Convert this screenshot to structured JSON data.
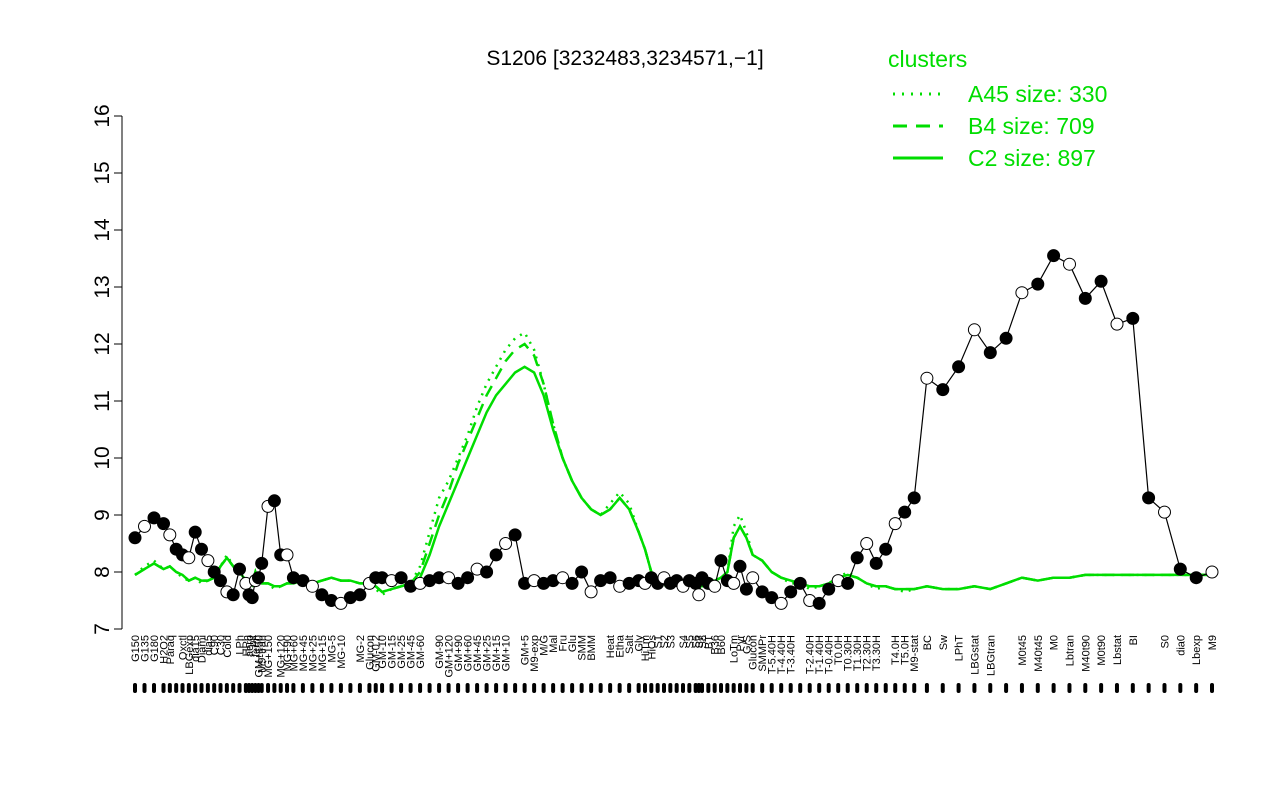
{
  "chart_data": {
    "type": "line",
    "title": "S1206 [3232483,3234571,−1]",
    "ylim": [
      7,
      16
    ],
    "yticks": [
      7,
      8,
      9,
      10,
      11,
      12,
      13,
      14,
      15,
      16
    ],
    "legend": {
      "title": "clusters",
      "placement": "top-right",
      "entries": [
        "A45 size: 330",
        "B4 size: 709",
        "C2 size: 897"
      ]
    },
    "x_labels": [
      "G150",
      "G135",
      "G180",
      "H2O2",
      "Paraq",
      "Oxctl",
      "LBGexp",
      "dia15",
      "Diami",
      "dia5",
      "C90",
      "C30",
      "Cold",
      "LPh",
      "HPh",
      "aero",
      "nit",
      "ferm",
      "GM+150",
      "M9-tran",
      "MG+150",
      "MG+120",
      "MG+90",
      "MG+60",
      "MG+45",
      "MG+25",
      "MG+15",
      "MG-5",
      "MG-10",
      "MG-2",
      "Glucon",
      "GM-0.2",
      "GM-10",
      "GM-15",
      "GM-25",
      "GM-45",
      "GM-60",
      "GM-90",
      "GM+120",
      "GM+90",
      "GM+60",
      "GM+45",
      "GM+25",
      "GM+15",
      "GM+10",
      "GM+5",
      "M9-exp",
      "M/G",
      "Mal",
      "Fru",
      "Glu",
      "SMM",
      "BMM",
      "Heat",
      "Etha",
      "Salt",
      "Gly",
      "HiTm",
      "HiOs",
      "S1",
      "S2",
      "S3",
      "S4",
      "S5",
      "S6",
      "S7",
      "S8",
      "BT",
      "B36",
      "B60",
      "LoTm",
      "Pyr",
      "G/S",
      "Glucon",
      "SMMPr",
      "T-5.40H",
      "T-4.40H",
      "T-3.40H",
      "T-2.40H",
      "T-1.40H",
      "T-0.40H",
      "T0.0H",
      "T0.30H",
      "T1.30H",
      "T2.30H",
      "T3.30H",
      "T4.0H",
      "T5.0H",
      "M9-stat",
      "BC",
      "Sw",
      "LPhT",
      "LBGstat",
      "LBGtran",
      "M0t45",
      "M40t45",
      "M0",
      "Lbtran",
      "M40t90",
      "M0t90",
      "Lbstat",
      "BI",
      "S0",
      "dia0",
      "Lbexp",
      "M9"
    ],
    "series": [
      {
        "name": "A45 size: 330",
        "style": "dotted",
        "x": [
          0,
          6,
          12,
          18,
          22,
          26,
          30,
          34,
          38,
          42,
          46,
          50,
          54,
          58,
          62,
          66,
          70,
          72,
          74,
          76,
          78,
          80,
          84,
          88,
          92,
          96,
          100,
          106,
          112,
          118,
          124,
          130,
          136,
          142,
          148,
          152,
          156,
          162,
          168,
          174,
          180,
          186,
          192,
          198,
          204,
          210,
          216,
          222,
          228,
          234,
          240,
          246,
          252,
          258,
          264,
          270,
          276,
          282,
          288,
          294,
          300,
          306,
          312,
          318,
          322,
          326,
          330,
          334,
          338,
          342,
          346,
          350,
          354,
          356,
          358,
          362,
          366,
          370,
          374,
          378,
          382,
          386,
          390,
          396,
          402,
          408,
          414,
          420,
          426,
          432,
          438,
          444,
          450,
          456,
          462,
          468,
          474,
          480,
          486,
          492,
          500,
          510,
          520,
          530,
          540,
          550,
          560,
          570,
          580,
          590,
          600,
          610,
          620,
          630,
          640,
          650,
          660,
          670,
          680
        ],
        "y": [
          7.95,
          8.1,
          8.2,
          8.05,
          8.1,
          8.0,
          7.9,
          7.85,
          7.9,
          7.8,
          7.85,
          7.9,
          8.1,
          8.3,
          8.1,
          8.0,
          7.8,
          7.7,
          7.75,
          8.0,
          7.85,
          7.8,
          7.8,
          7.7,
          7.75,
          7.8,
          7.8,
          7.85,
          7.8,
          7.85,
          7.9,
          7.85,
          7.85,
          7.8,
          7.8,
          7.7,
          7.6,
          7.7,
          7.75,
          7.8,
          8.1,
          8.7,
          9.3,
          9.6,
          10.0,
          10.4,
          10.9,
          11.3,
          11.6,
          11.9,
          12.1,
          12.2,
          11.9,
          11.3,
          10.6,
          10.0,
          9.6,
          9.3,
          9.1,
          9.0,
          9.2,
          9.4,
          9.2,
          8.7,
          8.4,
          8.0,
          7.8,
          7.75,
          7.8,
          7.8,
          7.75,
          7.8,
          7.8,
          7.7,
          7.75,
          7.8,
          7.85,
          7.9,
          8.0,
          8.8,
          9.0,
          8.7,
          8.3,
          8.2,
          8.0,
          7.9,
          7.8,
          7.8,
          7.7,
          7.75,
          7.8,
          7.9,
          8.0,
          7.9,
          7.8,
          7.7,
          7.75,
          7.7,
          7.65,
          7.7,
          7.75,
          7.7,
          7.7,
          7.75,
          7.7,
          7.8,
          7.9,
          7.85,
          7.9,
          7.9,
          7.95,
          7.95,
          7.95,
          7.95,
          7.95,
          7.95,
          7.95,
          7.95,
          7.95
        ]
      },
      {
        "name": "B4 size: 709",
        "style": "dashed",
        "x": [
          0,
          6,
          12,
          18,
          22,
          26,
          30,
          34,
          38,
          42,
          46,
          50,
          54,
          58,
          62,
          66,
          70,
          72,
          74,
          76,
          78,
          80,
          84,
          88,
          92,
          96,
          100,
          106,
          112,
          118,
          124,
          130,
          136,
          142,
          148,
          152,
          156,
          162,
          168,
          174,
          180,
          186,
          192,
          198,
          204,
          210,
          216,
          222,
          228,
          234,
          240,
          246,
          252,
          258,
          264,
          270,
          276,
          282,
          288,
          294,
          300,
          306,
          312,
          318,
          322,
          326,
          330,
          334,
          338,
          342,
          346,
          350,
          354,
          356,
          358,
          362,
          366,
          370,
          374,
          378,
          382,
          386,
          390,
          396,
          402,
          408,
          414,
          420,
          426,
          432,
          438,
          444,
          450,
          456,
          462,
          468,
          474,
          480,
          486,
          492,
          500,
          510,
          520,
          530,
          540,
          550,
          560,
          570,
          580,
          590,
          600,
          610,
          620,
          630,
          640,
          650,
          660,
          670,
          680
        ],
        "y": [
          7.95,
          8.05,
          8.15,
          8.05,
          8.1,
          8.0,
          7.95,
          7.85,
          7.9,
          7.85,
          7.85,
          7.9,
          8.1,
          8.25,
          8.1,
          8.0,
          7.85,
          7.75,
          7.8,
          8.0,
          7.85,
          7.8,
          7.8,
          7.75,
          7.75,
          7.8,
          7.8,
          7.85,
          7.8,
          7.85,
          7.9,
          7.85,
          7.85,
          7.8,
          7.8,
          7.75,
          7.65,
          7.7,
          7.75,
          7.8,
          8.0,
          8.5,
          9.0,
          9.4,
          9.9,
          10.3,
          10.7,
          11.1,
          11.4,
          11.7,
          11.9,
          12.0,
          11.8,
          11.3,
          10.6,
          10.0,
          9.6,
          9.3,
          9.1,
          9.0,
          9.1,
          9.3,
          9.1,
          8.7,
          8.4,
          8.0,
          7.85,
          7.8,
          7.8,
          7.8,
          7.75,
          7.8,
          7.8,
          7.75,
          7.75,
          7.8,
          7.85,
          7.9,
          8.0,
          8.6,
          8.8,
          8.6,
          8.3,
          8.2,
          8.0,
          7.9,
          7.85,
          7.8,
          7.75,
          7.75,
          7.8,
          7.9,
          7.95,
          7.9,
          7.8,
          7.75,
          7.75,
          7.7,
          7.7,
          7.7,
          7.75,
          7.7,
          7.7,
          7.75,
          7.7,
          7.8,
          7.9,
          7.85,
          7.9,
          7.9,
          7.95,
          7.95,
          7.95,
          7.95,
          7.95,
          7.95,
          7.95,
          7.95,
          7.95
        ]
      },
      {
        "name": "C2 size: 897",
        "style": "solid",
        "x": [
          0,
          6,
          12,
          18,
          22,
          26,
          30,
          34,
          38,
          42,
          46,
          50,
          54,
          58,
          62,
          66,
          70,
          72,
          74,
          76,
          78,
          80,
          84,
          88,
          92,
          96,
          100,
          106,
          112,
          118,
          124,
          130,
          136,
          142,
          148,
          152,
          156,
          162,
          168,
          174,
          180,
          186,
          192,
          198,
          204,
          210,
          216,
          222,
          228,
          234,
          240,
          246,
          252,
          258,
          264,
          270,
          276,
          282,
          288,
          294,
          300,
          306,
          312,
          318,
          322,
          326,
          330,
          334,
          338,
          342,
          346,
          350,
          354,
          356,
          358,
          362,
          366,
          370,
          374,
          378,
          382,
          386,
          390,
          396,
          402,
          408,
          414,
          420,
          426,
          432,
          438,
          444,
          450,
          456,
          462,
          468,
          474,
          480,
          486,
          492,
          500,
          510,
          520,
          530,
          540,
          550,
          560,
          570,
          580,
          590,
          600,
          610,
          620,
          630,
          640,
          650,
          660,
          670,
          680
        ],
        "y": [
          7.95,
          8.05,
          8.15,
          8.05,
          8.1,
          8.0,
          7.95,
          7.85,
          7.9,
          7.85,
          7.85,
          7.9,
          8.1,
          8.25,
          8.1,
          8.0,
          7.85,
          7.75,
          7.8,
          8.0,
          7.85,
          7.8,
          7.8,
          7.75,
          7.75,
          7.8,
          7.8,
          7.85,
          7.8,
          7.85,
          7.9,
          7.85,
          7.85,
          7.8,
          7.8,
          7.75,
          7.65,
          7.7,
          7.75,
          7.8,
          7.9,
          8.3,
          8.8,
          9.2,
          9.6,
          10.0,
          10.4,
          10.8,
          11.1,
          11.3,
          11.5,
          11.6,
          11.5,
          11.1,
          10.5,
          10.0,
          9.6,
          9.3,
          9.1,
          9.0,
          9.1,
          9.3,
          9.1,
          8.7,
          8.4,
          8.0,
          7.85,
          7.8,
          7.8,
          7.8,
          7.75,
          7.8,
          7.8,
          7.75,
          7.75,
          7.8,
          7.85,
          7.9,
          8.0,
          8.6,
          8.8,
          8.6,
          8.3,
          8.2,
          8.0,
          7.9,
          7.85,
          7.8,
          7.75,
          7.75,
          7.8,
          7.9,
          7.95,
          7.9,
          7.8,
          7.75,
          7.75,
          7.7,
          7.7,
          7.7,
          7.75,
          7.7,
          7.7,
          7.75,
          7.7,
          7.8,
          7.9,
          7.85,
          7.9,
          7.9,
          7.95,
          7.95,
          7.95,
          7.95,
          7.95,
          7.95,
          7.95,
          7.95,
          7.95
        ]
      }
    ],
    "points": {
      "x": [
        0,
        6,
        12,
        18,
        22,
        26,
        30,
        34,
        38,
        42,
        46,
        50,
        54,
        58,
        62,
        66,
        70,
        72,
        74,
        76,
        78,
        80,
        84,
        88,
        92,
        96,
        100,
        106,
        112,
        118,
        124,
        130,
        136,
        142,
        148,
        152,
        156,
        162,
        168,
        174,
        180,
        186,
        192,
        198,
        204,
        210,
        216,
        222,
        228,
        234,
        240,
        246,
        252,
        258,
        264,
        270,
        276,
        282,
        288,
        294,
        300,
        306,
        312,
        318,
        322,
        326,
        330,
        334,
        338,
        342,
        346,
        350,
        354,
        356,
        358,
        362,
        366,
        370,
        374,
        378,
        382,
        386,
        390,
        396,
        402,
        408,
        414,
        420,
        426,
        432,
        438,
        444,
        450,
        456,
        462,
        468,
        474,
        480,
        486,
        492,
        500,
        510,
        520,
        530,
        540,
        550,
        560,
        570,
        580,
        590,
        600,
        610,
        620,
        630,
        640,
        650,
        660,
        670,
        680
      ],
      "y": [
        8.6,
        8.8,
        8.95,
        8.85,
        8.65,
        8.4,
        8.3,
        8.25,
        8.7,
        8.4,
        8.2,
        8.0,
        7.85,
        7.65,
        7.6,
        8.05,
        7.8,
        7.6,
        7.55,
        7.85,
        7.9,
        8.15,
        9.15,
        9.25,
        8.3,
        8.3,
        7.9,
        7.85,
        7.75,
        7.6,
        7.5,
        7.45,
        7.55,
        7.6,
        7.8,
        7.9,
        7.9,
        7.85,
        7.9,
        7.75,
        7.8,
        7.85,
        7.9,
        7.9,
        7.8,
        7.9,
        8.05,
        8.0,
        8.3,
        8.5,
        8.65,
        7.8,
        7.85,
        7.8,
        7.85,
        7.9,
        7.8,
        8.0,
        7.65,
        7.85,
        7.9,
        7.75,
        7.8,
        7.85,
        7.8,
        7.9,
        7.8,
        7.9,
        7.8,
        7.85,
        7.75,
        7.85,
        7.8,
        7.6,
        7.9,
        7.8,
        7.75,
        8.2,
        7.85,
        7.8,
        8.1,
        7.7,
        7.9,
        7.65,
        7.55,
        7.45,
        7.65,
        7.8,
        7.5,
        7.45,
        7.7,
        7.85,
        7.8,
        8.25,
        8.5,
        8.15,
        8.4,
        8.85,
        9.05,
        9.3,
        11.4,
        11.2,
        11.6,
        12.25,
        11.85,
        12.1,
        12.9,
        13.05,
        13.55,
        13.4,
        12.8,
        13.1,
        12.35,
        12.45,
        9.3,
        9.05,
        8.05,
        7.9,
        8.0
      ]
    }
  }
}
